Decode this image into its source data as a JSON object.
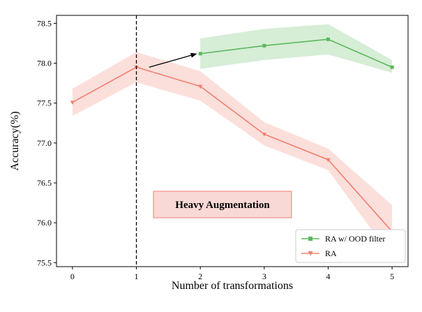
{
  "chart_data": {
    "type": "line",
    "title": "",
    "xlabel": "Number of transformations",
    "ylabel": "Accuracy(%)",
    "xlim": [
      -0.25,
      5.25
    ],
    "ylim": [
      75.45,
      78.6
    ],
    "xticks": [
      "0",
      "1",
      "2",
      "3",
      "4",
      "5"
    ],
    "yticks": [
      "75.5",
      "76.0",
      "76.5",
      "77.0",
      "77.5",
      "78.0",
      "78.5"
    ],
    "grid": false,
    "legend_position": "lower-right",
    "series": [
      {
        "name": "RA w/ OOD filter",
        "color": "#5cb85c",
        "marker": "square",
        "x": [
          2,
          3,
          4,
          5
        ],
        "y": [
          78.12,
          78.22,
          78.3,
          77.95
        ],
        "upper": [
          78.31,
          78.43,
          78.49,
          78.04
        ],
        "lower": [
          77.93,
          78.04,
          78.11,
          77.88
        ]
      },
      {
        "name": "RA",
        "color": "#f08070",
        "marker": "triangle-down",
        "x": [
          0,
          1,
          2,
          3,
          4,
          5
        ],
        "y": [
          77.51,
          77.95,
          77.71,
          77.11,
          76.79,
          75.89
        ],
        "upper": [
          77.68,
          78.14,
          77.9,
          77.26,
          76.93,
          76.22
        ],
        "lower": [
          77.34,
          77.76,
          77.53,
          76.97,
          76.66,
          75.56
        ]
      }
    ],
    "annotations": {
      "vline_x": 1,
      "arrow": {
        "from": [
          1.2,
          77.95
        ],
        "to": [
          1.95,
          78.12
        ]
      },
      "box_text": "Heavy Augmentation",
      "box_color": "#f9d9d6"
    }
  }
}
